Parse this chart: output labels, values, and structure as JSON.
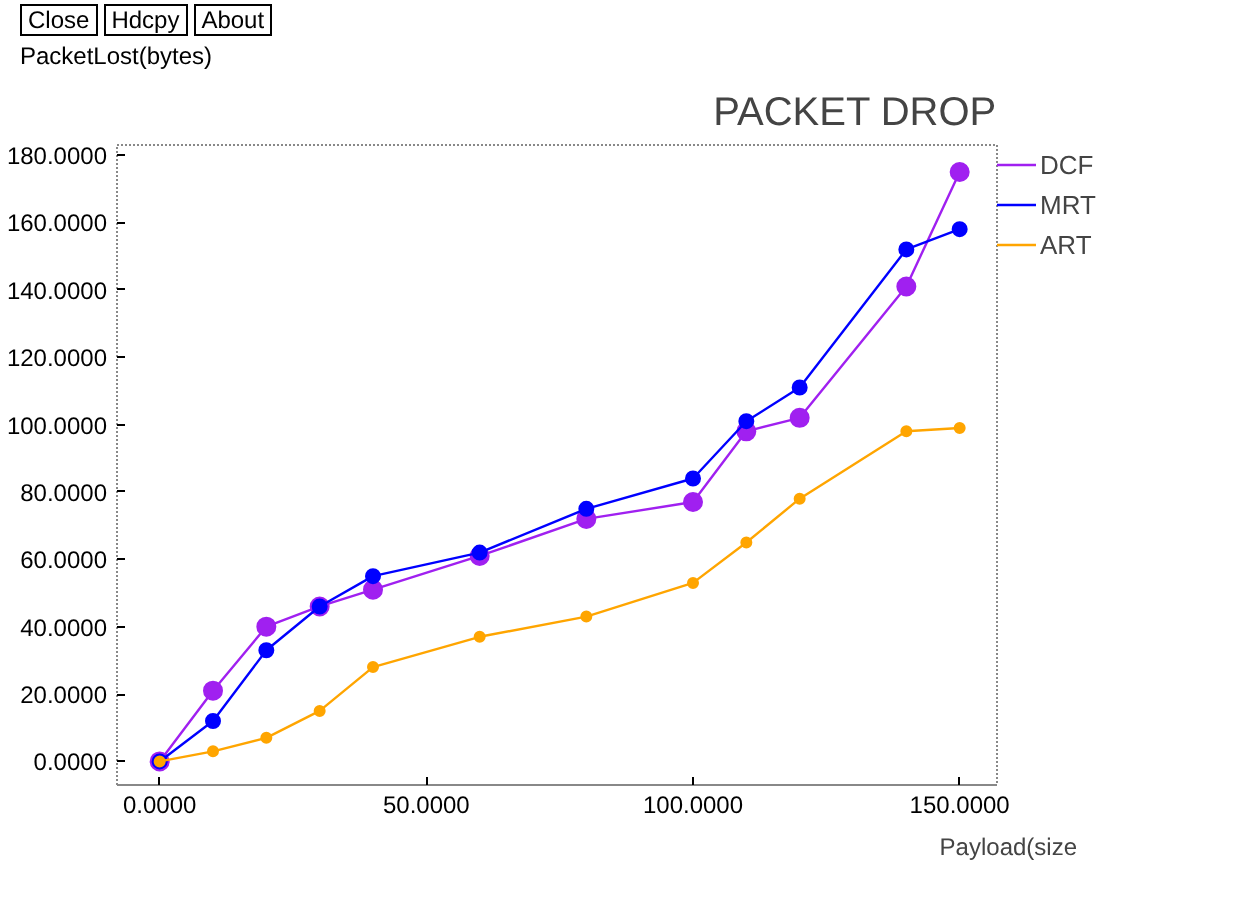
{
  "chart_data": {
    "type": "line",
    "title": "PACKET DROP",
    "xlabel": "Payload(size",
    "ylabel": "PacketLost(bytes)",
    "annotations": [
      "Close",
      "Hdcpy",
      "About"
    ],
    "x": [
      0,
      10,
      20,
      30,
      40,
      60,
      80,
      100,
      110,
      120,
      140,
      150
    ],
    "series": [
      {
        "name": "DCF",
        "color": "#a020f0",
        "values": [
          0,
          21,
          40,
          46,
          51,
          61,
          72,
          77,
          98,
          102,
          141,
          175
        ]
      },
      {
        "name": "MRT",
        "color": "#0000ff",
        "values": [
          0,
          12,
          33,
          46,
          55,
          62,
          75,
          84,
          101,
          111,
          152,
          158
        ]
      },
      {
        "name": "ART",
        "color": "#ffa500",
        "values": [
          0,
          3,
          7,
          15,
          28,
          37,
          43,
          53,
          65,
          78,
          98,
          99
        ]
      }
    ],
    "xlim": [
      -8,
      157
    ],
    "ylim": [
      -7,
      183
    ],
    "xticks": [
      {
        "value": 0,
        "label": "0.0000"
      },
      {
        "value": 50,
        "label": "50.0000"
      },
      {
        "value": 100,
        "label": "100.0000"
      },
      {
        "value": 150,
        "label": "150.0000"
      }
    ],
    "yticks": [
      {
        "value": 0,
        "label": "0.0000"
      },
      {
        "value": 20,
        "label": "20.0000"
      },
      {
        "value": 40,
        "label": "40.0000"
      },
      {
        "value": 60,
        "label": "60.0000"
      },
      {
        "value": 80,
        "label": "80.0000"
      },
      {
        "value": 100,
        "label": "100.0000"
      },
      {
        "value": 120,
        "label": "120.0000"
      },
      {
        "value": 140,
        "label": "140.0000"
      },
      {
        "value": 160,
        "label": "160.0000"
      },
      {
        "value": 180,
        "label": "180.0000"
      }
    ],
    "grid": false,
    "legend": "top right",
    "marker": "circle",
    "line_style": "solid"
  }
}
